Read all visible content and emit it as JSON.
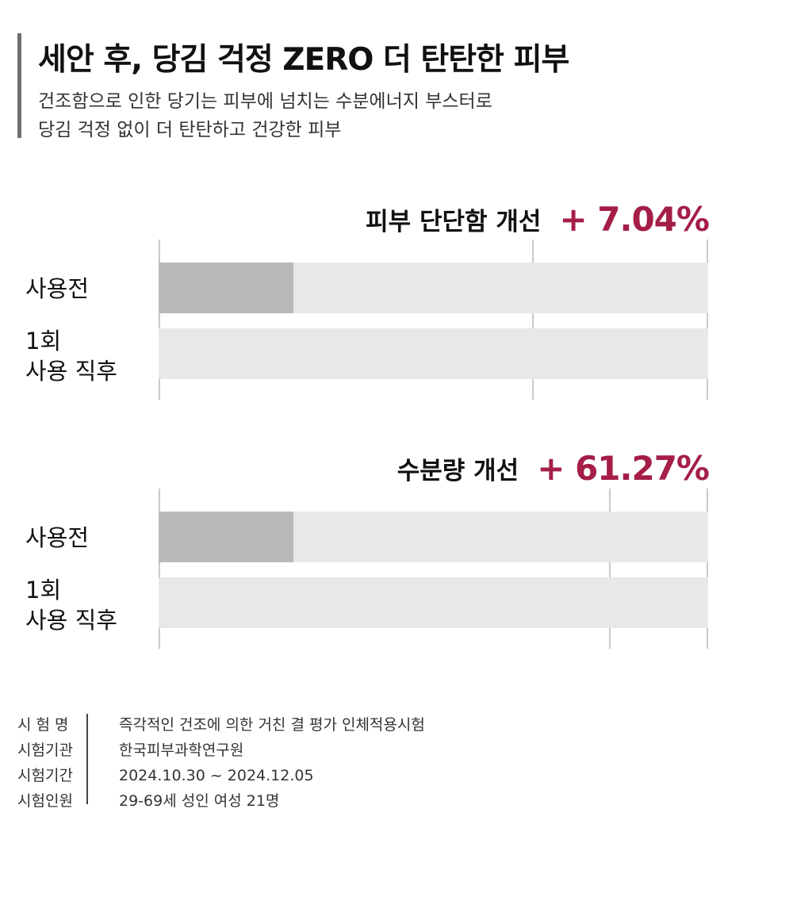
{
  "header": {
    "title": "세안 후, 당김 걱정 ZERO 더 탄탄한 피부",
    "subtitle_line1": "건조함으로 인한 당기는 피부에 넘치는 수분에너지 부스터로",
    "subtitle_line2": "당김 걱정 없이 더 탄탄하고 건강한 피부"
  },
  "chart_data": [
    {
      "type": "bar",
      "orientation": "horizontal",
      "title": "피부 단단함 개선",
      "improvement": "+ 7.04%",
      "categories": [
        "사용전",
        "1회 사용 직후"
      ],
      "category_lines": [
        [
          "사용전"
        ],
        [
          "1회",
          "사용 직후"
        ]
      ],
      "values": [
        0.245,
        1.0
      ],
      "gridlines": [
        0.0,
        0.68,
        1.0
      ],
      "xlim": [
        0,
        1
      ],
      "colors": {
        "before": "#b9b9ba",
        "after": "#e8e8e9",
        "track": "#e8e8e9",
        "accent": "#a51e47"
      }
    },
    {
      "type": "bar",
      "orientation": "horizontal",
      "title": "수분량 개선",
      "improvement": "+ 61.27%",
      "categories": [
        "사용전",
        "1회 사용 직후"
      ],
      "category_lines": [
        [
          "사용전"
        ],
        [
          "1회",
          "사용 직후"
        ]
      ],
      "values": [
        0.245,
        1.0
      ],
      "gridlines": [
        0.0,
        0.82,
        1.0
      ],
      "xlim": [
        0,
        1
      ],
      "colors": {
        "before": "#b9b9ba",
        "after": "#e8e8e9",
        "track": "#e8e8e9",
        "accent": "#a51e47"
      }
    }
  ],
  "test_info": [
    {
      "key": "시 험 명",
      "value": "즉각적인 건조에 의한 거친 결 평가 인체적용시험"
    },
    {
      "key": "시험기관",
      "value": "한국피부과학연구원"
    },
    {
      "key": "시험기간",
      "value": "2024.10.30 ~ 2024.12.05"
    },
    {
      "key": "시험인원",
      "value": "29-69세 성인 여성 21명"
    }
  ]
}
